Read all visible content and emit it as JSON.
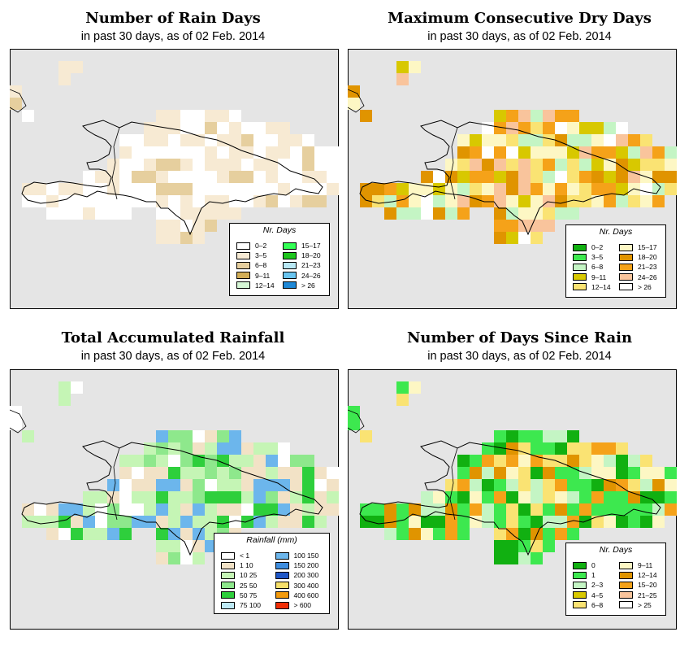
{
  "panels": [
    {
      "title": "Number of Rain Days",
      "subtitle": "in past 30 days, as of  02 Feb. 2014",
      "legend_title": "Nr. Days",
      "legend": [
        {
          "label": "0–2",
          "color": "#ffffff"
        },
        {
          "label": "3–5",
          "color": "#f7ead3"
        },
        {
          "label": "6–8",
          "color": "#e6cf9e"
        },
        {
          "label": "9–11",
          "color": "#d2ae57"
        },
        {
          "label": "12–14",
          "color": "#d6f7d6"
        },
        {
          "label": "15–17",
          "color": "#33ff55"
        },
        {
          "label": "18–20",
          "color": "#1ec61e"
        },
        {
          "label": "21–23",
          "color": "#b8e8f5"
        },
        {
          "label": "24–26",
          "color": "#69c4ef"
        },
        {
          "label": "> 26",
          "color": "#1e88d6"
        }
      ]
    },
    {
      "title": "Maximum Consecutive Dry Days",
      "subtitle": "in past 30 days, as of  02 Feb. 2014",
      "legend_title": "Nr. Days",
      "legend": [
        {
          "label": "0–2",
          "color": "#11b011"
        },
        {
          "label": "3–5",
          "color": "#3de84f"
        },
        {
          "label": "6–8",
          "color": "#c4f5c4"
        },
        {
          "label": "9–11",
          "color": "#d8c800"
        },
        {
          "label": "12–14",
          "color": "#fae373"
        },
        {
          "label": "15–17",
          "color": "#fdf7c4"
        },
        {
          "label": "18–20",
          "color": "#e09400"
        },
        {
          "label": "21–23",
          "color": "#f5a219"
        },
        {
          "label": "24–26",
          "color": "#f9c49c"
        },
        {
          "label": "> 26",
          "color": "#ffffff"
        }
      ]
    },
    {
      "title": "Total Accumulated Rainfall",
      "subtitle": "in past 30 days, as of  02 Feb. 2014",
      "legend_title": "Rainfall (mm)",
      "legend": [
        {
          "label": "< 1",
          "color": "#ffffff"
        },
        {
          "label": "1    10",
          "color": "#f2e2c6"
        },
        {
          "label": "10    25",
          "color": "#c5f5b5"
        },
        {
          "label": "25    50",
          "color": "#8ee88c"
        },
        {
          "label": "50    75",
          "color": "#2ecf3c"
        },
        {
          "label": "75  100",
          "color": "#bde9f5"
        },
        {
          "label": "100  150",
          "color": "#6cb6ec"
        },
        {
          "label": "150  200",
          "color": "#3e8ddf"
        },
        {
          "label": "200  300",
          "color": "#1e56c6"
        },
        {
          "label": "300  400",
          "color": "#f7e06a"
        },
        {
          "label": "400  600",
          "color": "#f39a0b"
        },
        {
          "label": "> 600",
          "color": "#f02d05"
        }
      ]
    },
    {
      "title": "Number of Days Since Rain",
      "subtitle": "in past 30 days, as of  02 Feb. 2014",
      "legend_title": "Nr. Days",
      "legend": [
        {
          "label": "0",
          "color": "#11b011"
        },
        {
          "label": "1",
          "color": "#3de84f"
        },
        {
          "label": "2–3",
          "color": "#c4f5c4"
        },
        {
          "label": "4–5",
          "color": "#d8c800"
        },
        {
          "label": "6–8",
          "color": "#fae373"
        },
        {
          "label": "9–11",
          "color": "#fdf7c4"
        },
        {
          "label": "12–14",
          "color": "#e09400"
        },
        {
          "label": "15–20",
          "color": "#f5a219"
        },
        {
          "label": "21–25",
          "color": "#f9c49c"
        },
        {
          "label": "> 25",
          "color": "#ffffff"
        }
      ]
    }
  ]
}
